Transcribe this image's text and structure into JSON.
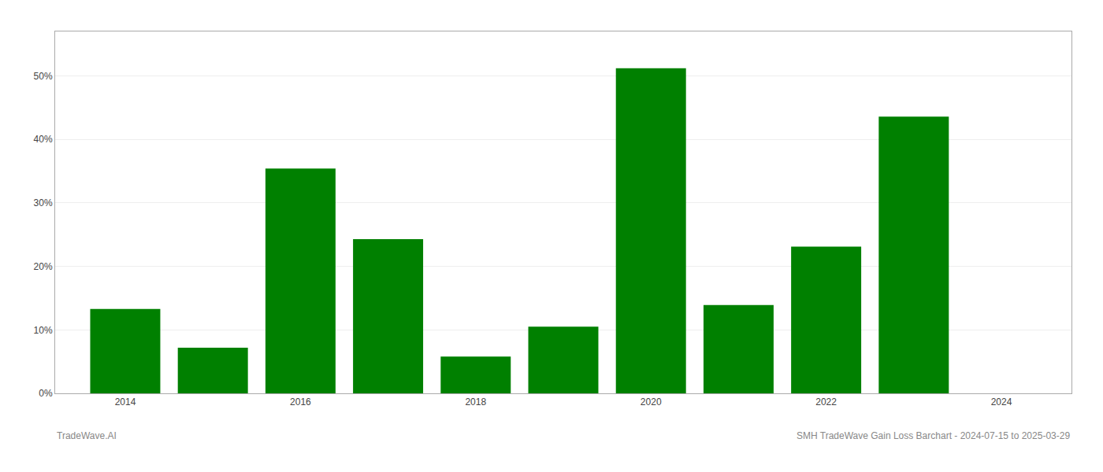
{
  "chart_data": {
    "type": "bar",
    "x": [
      2014,
      2015,
      2016,
      2017,
      2018,
      2019,
      2020,
      2021,
      2022,
      2023
    ],
    "values": [
      13.3,
      7.2,
      35.4,
      24.3,
      5.8,
      10.5,
      51.2,
      13.9,
      23.1,
      43.6
    ],
    "color": "#008000",
    "xlim": [
      2013.2,
      2024.8
    ],
    "xticks": [
      2014,
      2016,
      2018,
      2020,
      2022,
      2024
    ],
    "ylim": [
      0,
      57
    ],
    "yticks": [
      {
        "value": 0,
        "label": "0%"
      },
      {
        "value": 10,
        "label": "10%"
      },
      {
        "value": 20,
        "label": "20%"
      },
      {
        "value": 30,
        "label": "30%"
      },
      {
        "value": 40,
        "label": "40%"
      },
      {
        "value": 50,
        "label": "50%"
      }
    ],
    "grid": "y",
    "annotations": [
      "TradeWave.AI",
      "SMH TradeWave Gain Loss Barchart - 2024-07-15 to 2025-03-29"
    ]
  }
}
